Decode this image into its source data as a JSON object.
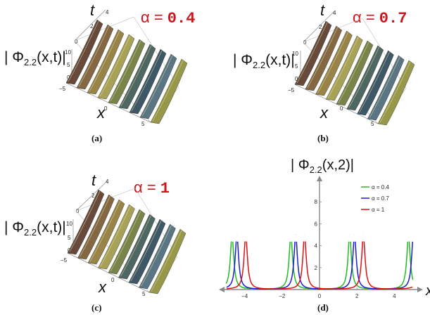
{
  "panels": [
    {
      "caption": "(a)",
      "alpha_prefix": "α = ",
      "alpha_value": "0.4",
      "zlabel_main": "| Φ",
      "zlabel_sub": "2.2",
      "zlabel_tail": "(x,t)|",
      "t_label": "t",
      "x_label": "x",
      "t_ticks": [
        "4",
        "2",
        "0"
      ],
      "z_ticks": [
        "10",
        "5",
        "0"
      ],
      "x_ticks": [
        "−5",
        "0",
        "5"
      ]
    },
    {
      "caption": "(b)",
      "alpha_prefix": "α = ",
      "alpha_value": "0.7",
      "zlabel_main": "| Φ",
      "zlabel_sub": "2.2",
      "zlabel_tail": "(x,t)|",
      "t_label": "t",
      "x_label": "x",
      "t_ticks": [
        "4",
        "2",
        "0"
      ],
      "z_ticks": [
        "10",
        "5",
        "0"
      ],
      "x_ticks": [
        "−5",
        "0",
        "5"
      ]
    },
    {
      "caption": "(c)",
      "alpha_prefix": "α = ",
      "alpha_value": "1",
      "zlabel_main": "| Φ",
      "zlabel_sub": "2.2",
      "zlabel_tail": "(x,t)|",
      "t_label": "t",
      "x_label": "x",
      "t_ticks": [
        "4",
        "2",
        "0"
      ],
      "z_ticks": [
        "10",
        "5",
        "0"
      ],
      "x_ticks": [
        "−5",
        "0",
        "5"
      ]
    }
  ],
  "chart_caption": "(d)",
  "chart_data": {
    "type": "line",
    "title_main": "| Φ",
    "title_sub": "2.2",
    "title_tail": "(x,2)|",
    "xlabel": "x",
    "xlim": [
      -5,
      5
    ],
    "ylim": [
      0,
      10
    ],
    "xticks": [
      -4,
      -2,
      0,
      2,
      4
    ],
    "xtick_labels": [
      "−4",
      "−2",
      "0",
      "2",
      "4"
    ],
    "yticks": [
      2,
      4,
      6,
      8
    ],
    "ytick_labels": [
      "2",
      "4",
      "6",
      "8"
    ],
    "legend_position": "top-right",
    "series": [
      {
        "name": "α = 0.4",
        "color": "#22bb22",
        "period": 3.1416,
        "singularities": [
          -4.67,
          -1.53,
          1.61,
          4.75
        ]
      },
      {
        "name": "α = 0.7",
        "color": "#1a1ad6",
        "period": 3.1416,
        "singularities": [
          -4.41,
          -1.27,
          1.87,
          5.01
        ]
      },
      {
        "name": "α = 1",
        "color": "#dd1111",
        "period": 3.1416,
        "singularities": [
          -3.94,
          -0.8,
          2.34
        ]
      }
    ]
  }
}
